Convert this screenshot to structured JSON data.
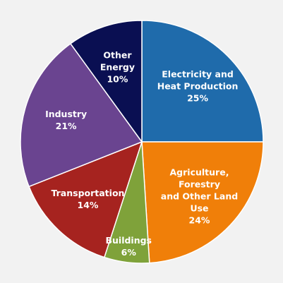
{
  "chart_data": {
    "type": "pie",
    "categories": [
      "Electricity and\nHeat Production",
      "Agriculture, Forestry\nand Other Land Use",
      "Buildings",
      "Transportation",
      "Industry",
      "Other\nEnergy"
    ],
    "values": [
      25,
      24,
      6,
      14,
      21,
      10
    ],
    "value_labels": [
      "25%",
      "24%",
      "6%",
      "14%",
      "21%",
      "10%"
    ],
    "colors": [
      "#1f6bab",
      "#f07f09",
      "#7fa23a",
      "#a6231f",
      "#6a4490",
      "#0a0f52"
    ]
  }
}
